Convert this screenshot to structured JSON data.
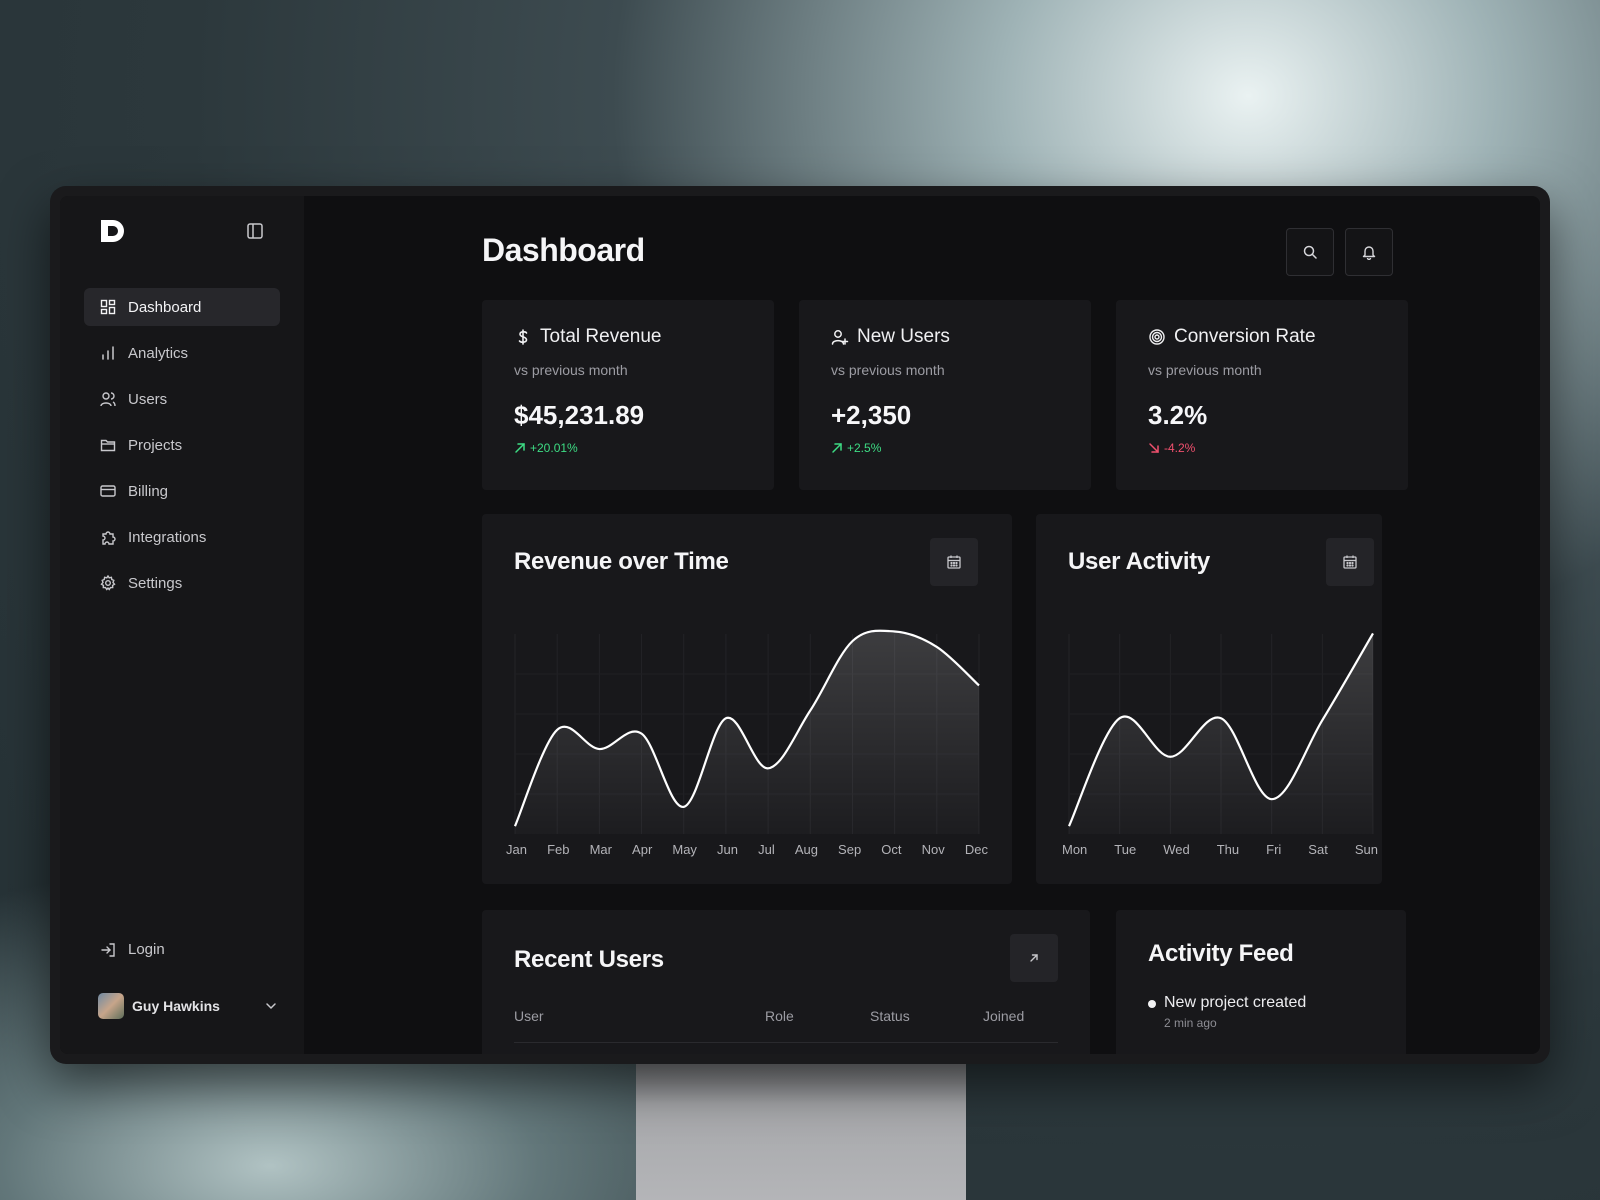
{
  "sidebar": {
    "items": [
      {
        "label": "Dashboard",
        "icon": "dashboard-icon",
        "active": true
      },
      {
        "label": "Analytics",
        "icon": "bar-chart-icon",
        "active": false
      },
      {
        "label": "Users",
        "icon": "users-icon",
        "active": false
      },
      {
        "label": "Projects",
        "icon": "folder-icon",
        "active": false
      },
      {
        "label": "Billing",
        "icon": "credit-card-icon",
        "active": false
      },
      {
        "label": "Integrations",
        "icon": "puzzle-icon",
        "active": false
      },
      {
        "label": "Settings",
        "icon": "gear-icon",
        "active": false
      }
    ],
    "login_label": "Login",
    "user_name": "Guy Hawkins"
  },
  "header": {
    "title": "Dashboard"
  },
  "stats": [
    {
      "title": "Total Revenue",
      "icon": "dollar-icon",
      "sub": "vs previous month",
      "value": "$45,231.89",
      "delta": "+20.01%",
      "trend": "up"
    },
    {
      "title": "New Users",
      "icon": "user-plus-icon",
      "sub": "vs previous month",
      "value": "+2,350",
      "delta": "+2.5%",
      "trend": "up"
    },
    {
      "title": "Conversion Rate",
      "icon": "target-icon",
      "sub": "vs previous month",
      "value": "3.2%",
      "delta": "-4.2%",
      "trend": "down"
    }
  ],
  "colors": {
    "positive": "#3ddc84",
    "negative": "#f0506e",
    "line": "#ffffff"
  },
  "revenue_panel": {
    "title": "Revenue over Time"
  },
  "activity_panel": {
    "title": "User Activity"
  },
  "recent_users": {
    "title": "Recent Users",
    "columns": [
      "User",
      "Role",
      "Status",
      "Joined"
    ]
  },
  "activity_feed": {
    "title": "Activity Feed",
    "items": [
      {
        "text": "New project created",
        "time": "2 min ago"
      }
    ]
  },
  "chart_data": [
    {
      "type": "area",
      "categories": [
        "Jan",
        "Feb",
        "Mar",
        "Apr",
        "May",
        "Jun",
        "Jul",
        "Aug",
        "Sep",
        "Oct",
        "Nov",
        "Dec"
      ],
      "values": [
        2,
        52,
        42,
        50,
        12,
        58,
        32,
        62,
        98,
        103,
        95,
        75
      ],
      "ylim": [
        0,
        110
      ],
      "grid": true
    },
    {
      "type": "area",
      "categories": [
        "Mon",
        "Tue",
        "Wed",
        "Thu",
        "Fri",
        "Sat",
        "Sun"
      ],
      "values": [
        2,
        58,
        38,
        58,
        16,
        57,
        102
      ],
      "ylim": [
        0,
        110
      ],
      "grid": true
    }
  ]
}
